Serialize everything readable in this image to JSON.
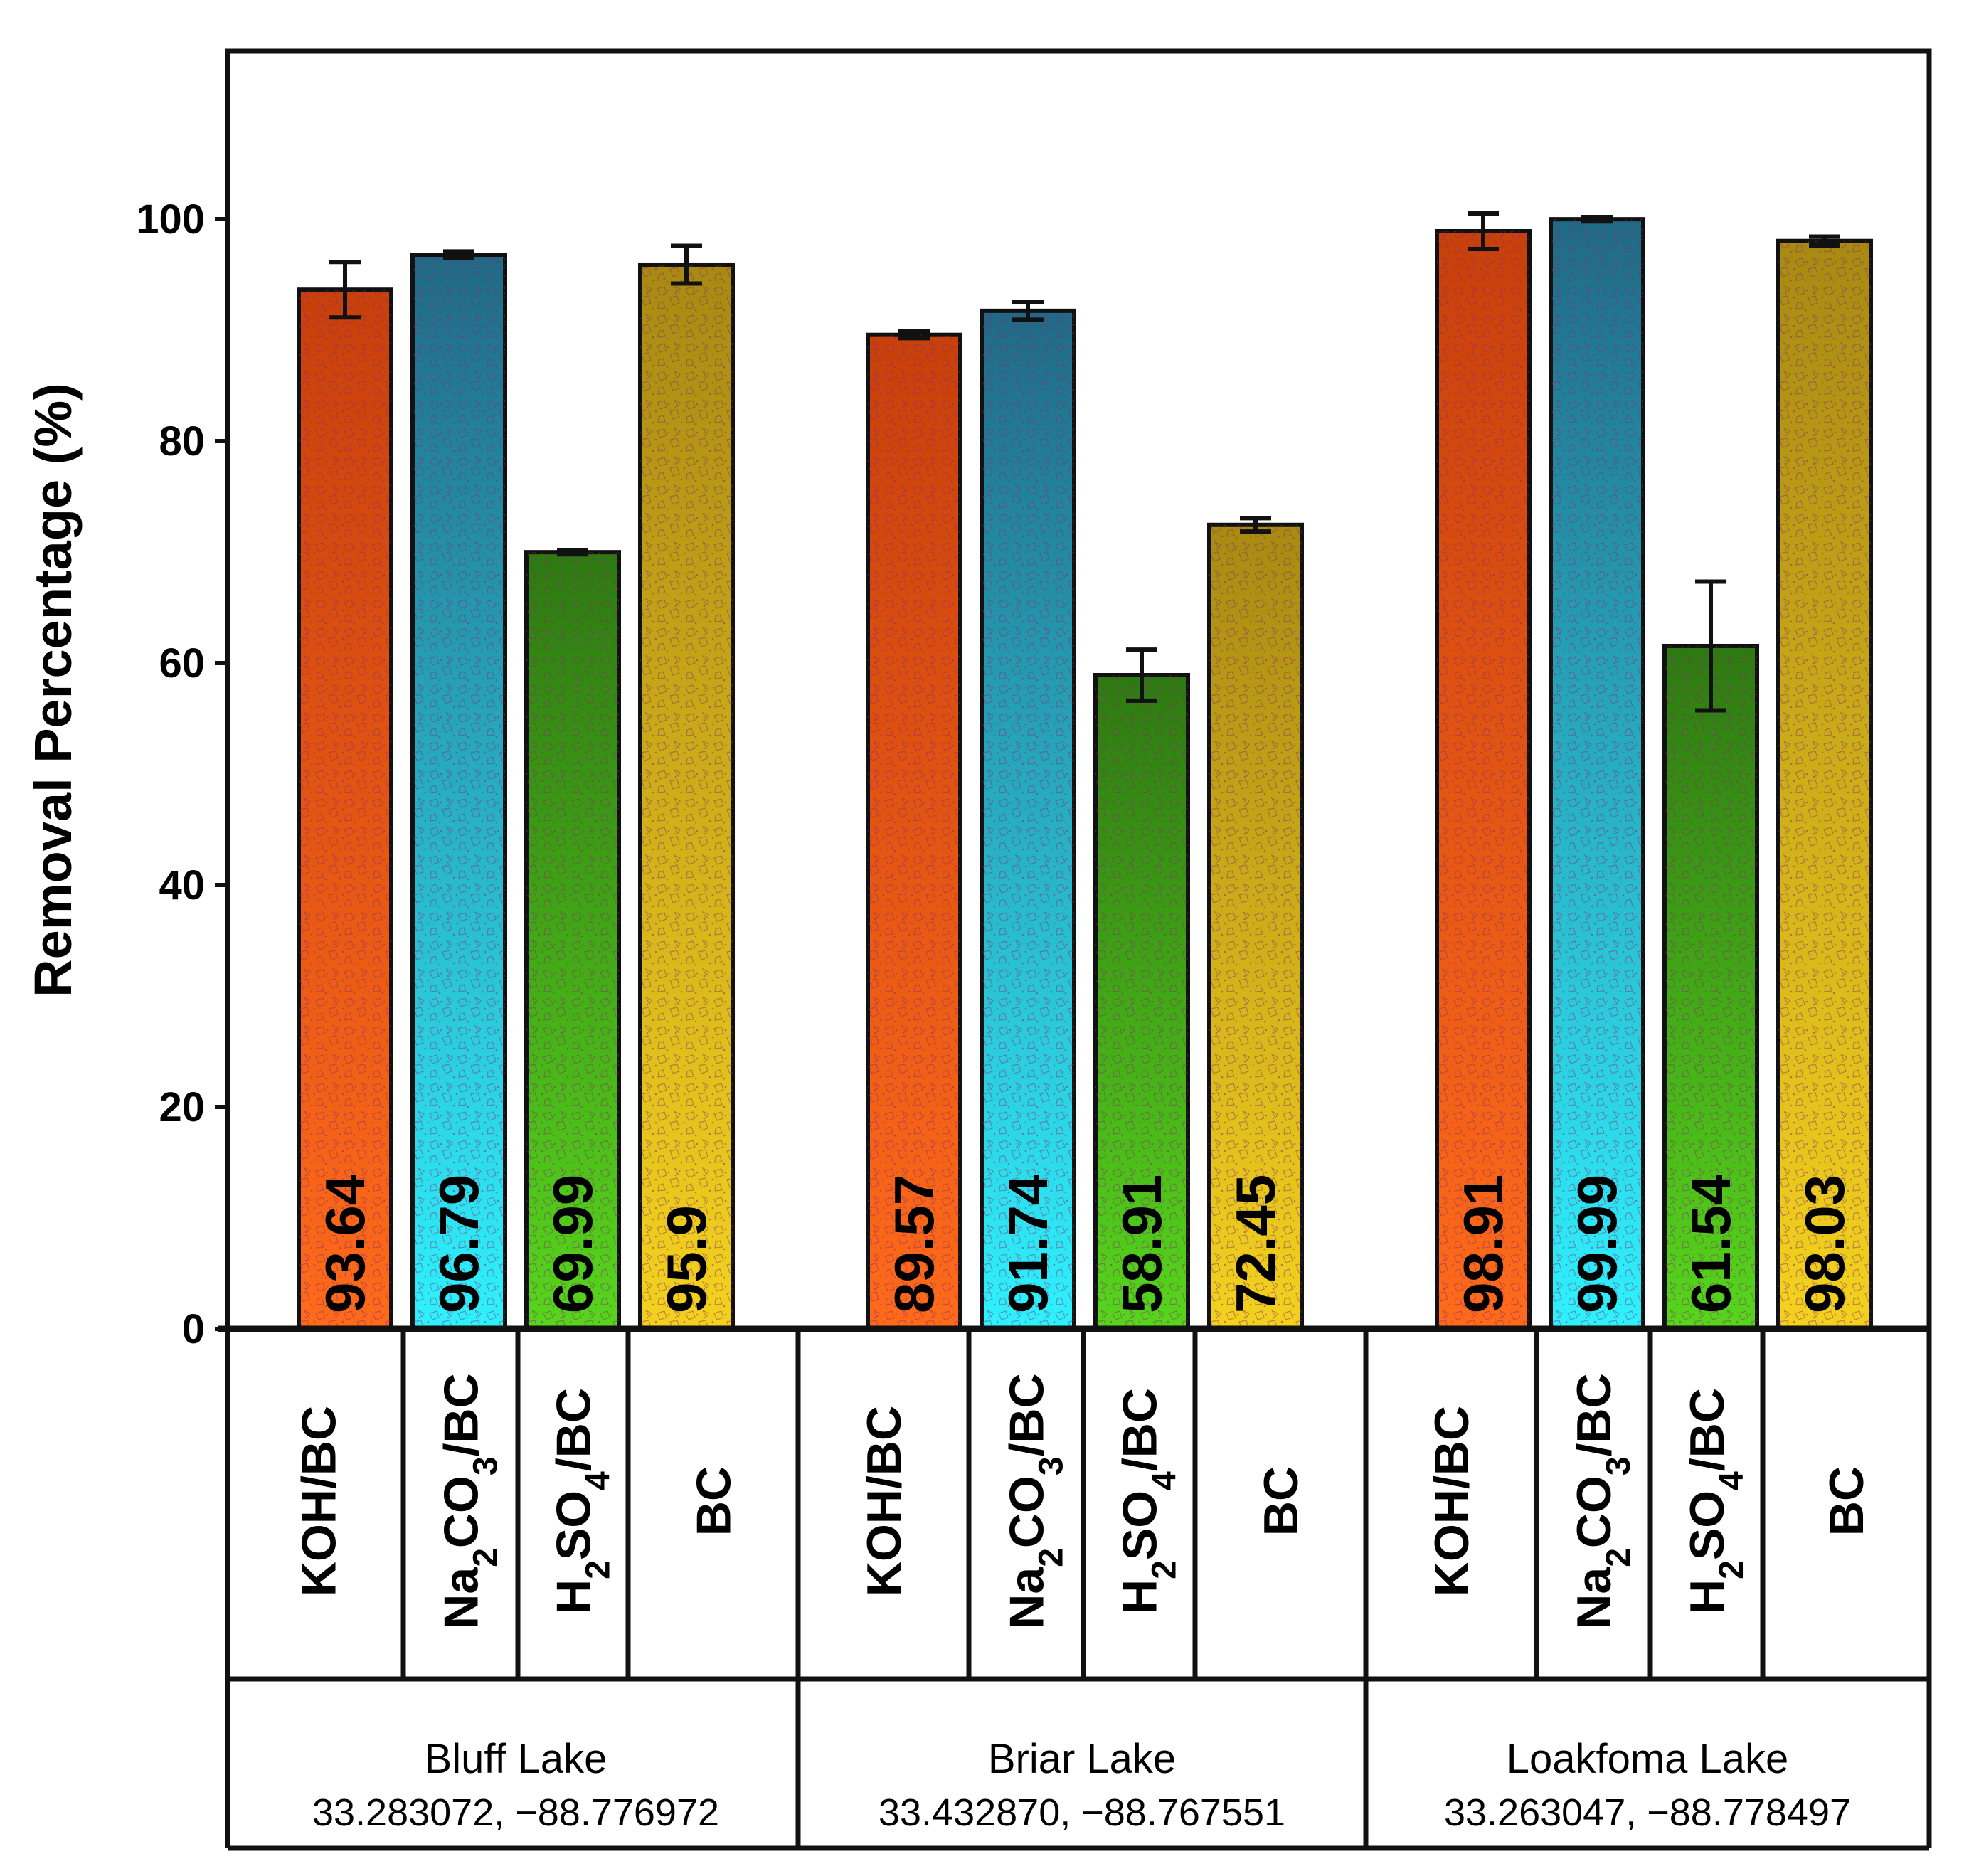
{
  "chart_data": {
    "type": "bar",
    "title": "",
    "xlabel": "",
    "ylabel": "Removal Percentage (%)",
    "ylim": [
      0,
      115
    ],
    "yticks": [
      0,
      20,
      40,
      60,
      80,
      100
    ],
    "grid": false,
    "legend": "none",
    "categories": [
      "KOH/BC",
      "Na2CO3/BC",
      "H2SO4/BC",
      "BC"
    ],
    "category_display": [
      {
        "main": "Na",
        "sub": "2",
        "rest": "CO",
        "sub2": "3",
        "tail": "/BC"
      },
      {
        "main": "H",
        "sub": "2",
        "rest": "SO",
        "sub2": "4",
        "tail": "/BC"
      }
    ],
    "colors": {
      "KOH/BC": [
        "#c8400a",
        "#ff6a1a"
      ],
      "Na2CO3/BC": [
        "#1f6a86",
        "#2ef2ff"
      ],
      "H2SO4/BC": [
        "#2c7a10",
        "#56d61c"
      ],
      "BC": [
        "#a88a12",
        "#f3d21e"
      ]
    },
    "groups": [
      {
        "name": "Bluff Lake",
        "coords": "33.283072, −88.776972",
        "values": [
          93.64,
          96.79,
          69.99,
          95.9
        ],
        "labels": [
          "93.64",
          "96.79",
          "69.99",
          "95.9"
        ],
        "errors": [
          2.5,
          0.3,
          0.2,
          1.7
        ]
      },
      {
        "name": "Briar Lake",
        "coords": "33.432870, −88.767551",
        "values": [
          89.57,
          91.74,
          58.91,
          72.45
        ],
        "labels": [
          "89.57",
          "91.74",
          "58.91",
          "72.45"
        ],
        "errors": [
          0.3,
          0.8,
          2.3,
          0.6
        ]
      },
      {
        "name": "Loakfoma Lake",
        "coords": "33.263047, −88.778497",
        "values": [
          98.91,
          99.99,
          61.54,
          98.03
        ],
        "labels": [
          "98.91",
          "99.99",
          "61.54",
          "98.03"
        ],
        "errors": [
          1.6,
          0.2,
          5.8,
          0.4
        ]
      }
    ]
  }
}
